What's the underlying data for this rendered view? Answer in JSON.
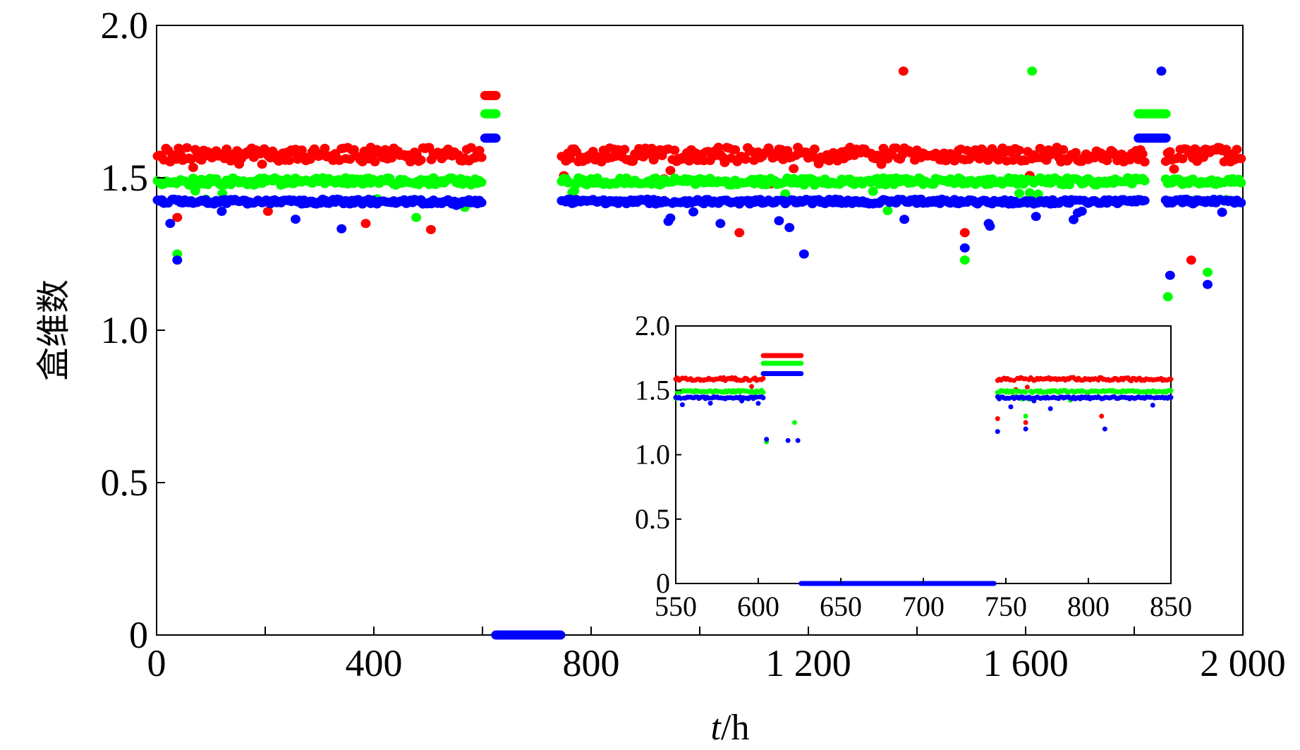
{
  "chart_data": [
    {
      "type": "scatter",
      "title": "",
      "xlabel_var": "t",
      "xlabel_unit": "/h",
      "ylabel": "盒维数",
      "xlim": [
        0,
        2000
      ],
      "ylim": [
        0,
        2.0
      ],
      "x_ticks": [
        0,
        400,
        800,
        1200,
        1600,
        2000
      ],
      "x_tick_labels": [
        "0",
        "400",
        "800",
        "1 200",
        "1 600",
        "2 000"
      ],
      "y_ticks": [
        0,
        0.5,
        1.0,
        1.5,
        2.0
      ],
      "y_tick_labels": [
        "0",
        "0.5",
        "1.0",
        "1.5",
        "2.0"
      ],
      "legend": "none",
      "grid": false,
      "series": [
        {
          "name": "red",
          "color": "#ff0000",
          "baseline": 1.6,
          "spread": 0.04,
          "segments": [
            [
              2,
              602
            ],
            [
              746,
              1820
            ],
            [
              1858,
              2000
            ]
          ],
          "step": [
            605,
            625,
            1.77
          ],
          "outliers": [
            [
              38,
              1.37
            ],
            [
              205,
              1.39
            ],
            [
              385,
              1.35
            ],
            [
              505,
              1.33
            ],
            [
              1073,
              1.32
            ],
            [
              1375,
              1.85
            ],
            [
              1488,
              1.32
            ],
            [
              1905,
              1.23
            ]
          ]
        },
        {
          "name": "green",
          "color": "#00ff00",
          "baseline": 1.5,
          "spread": 0.03,
          "segments": [
            [
              2,
              602
            ],
            [
              746,
              1820
            ],
            [
              1858,
              2000
            ]
          ],
          "step": [
            605,
            625,
            1.71
          ],
          "plateau": [
            1808,
            1858,
            1.71
          ],
          "outliers": [
            [
              38,
              1.25
            ],
            [
              478,
              1.37
            ],
            [
              1612,
              1.85
            ],
            [
              1488,
              1.23
            ],
            [
              1935,
              1.19
            ],
            [
              1862,
              1.11
            ]
          ]
        },
        {
          "name": "blue",
          "color": "#0000ff",
          "baseline": 1.43,
          "spread": 0.02,
          "segments": [
            [
              2,
              602
            ],
            [
              746,
              1820
            ],
            [
              1858,
              2000
            ]
          ],
          "step": [
            605,
            625,
            1.63
          ],
          "plateau": [
            1808,
            1858,
            1.63
          ],
          "zero_segment": [
            625,
            745
          ],
          "outliers": [
            [
              38,
              1.23
            ],
            [
              120,
              1.39
            ],
            [
              1038,
              1.35
            ],
            [
              1192,
              1.25
            ],
            [
              1488,
              1.27
            ],
            [
              1532,
              1.35
            ],
            [
              1850,
              1.85
            ],
            [
              1866,
              1.18
            ],
            [
              1935,
              1.15
            ]
          ]
        }
      ]
    },
    {
      "type": "scatter",
      "title": "inset",
      "xlim": [
        550,
        850
      ],
      "ylim": [
        0,
        2.0
      ],
      "x_ticks": [
        550,
        600,
        650,
        700,
        750,
        800,
        850
      ],
      "x_tick_labels": [
        "550",
        "600",
        "650",
        "700",
        "750",
        "800",
        "850"
      ],
      "y_ticks": [
        0,
        0.5,
        1.0,
        1.5,
        2.0
      ],
      "y_tick_labels": [
        "0",
        "0.5",
        "1.0",
        "1.5",
        "2.0"
      ],
      "legend": "none",
      "grid": false,
      "series": [
        {
          "name": "red",
          "color": "#ff0000",
          "segments": [
            [
              550,
              603
            ],
            [
              745,
              850
            ]
          ],
          "baseline": 1.6,
          "step": [
            603,
            626,
            1.77
          ],
          "outliers": [
            [
              745,
              1.28
            ],
            [
              762,
              1.25
            ],
            [
              808,
              1.3
            ]
          ]
        },
        {
          "name": "green",
          "color": "#00ff00",
          "segments": [
            [
              550,
              603
            ],
            [
              745,
              850
            ]
          ],
          "baseline": 1.5,
          "step": [
            603,
            626,
            1.71
          ],
          "outliers": [
            [
              605,
              1.1
            ],
            [
              622,
              1.25
            ],
            [
              762,
              1.3
            ]
          ]
        },
        {
          "name": "blue",
          "color": "#0000ff",
          "segments": [
            [
              550,
              603
            ],
            [
              745,
              850
            ]
          ],
          "baseline": 1.45,
          "step": [
            603,
            626,
            1.63
          ],
          "zero_segment": [
            626,
            743
          ],
          "outliers": [
            [
              605,
              1.12
            ],
            [
              618,
              1.11
            ],
            [
              624,
              1.11
            ],
            [
              745,
              1.18
            ],
            [
              762,
              1.2
            ],
            [
              810,
              1.2
            ]
          ]
        }
      ]
    }
  ]
}
